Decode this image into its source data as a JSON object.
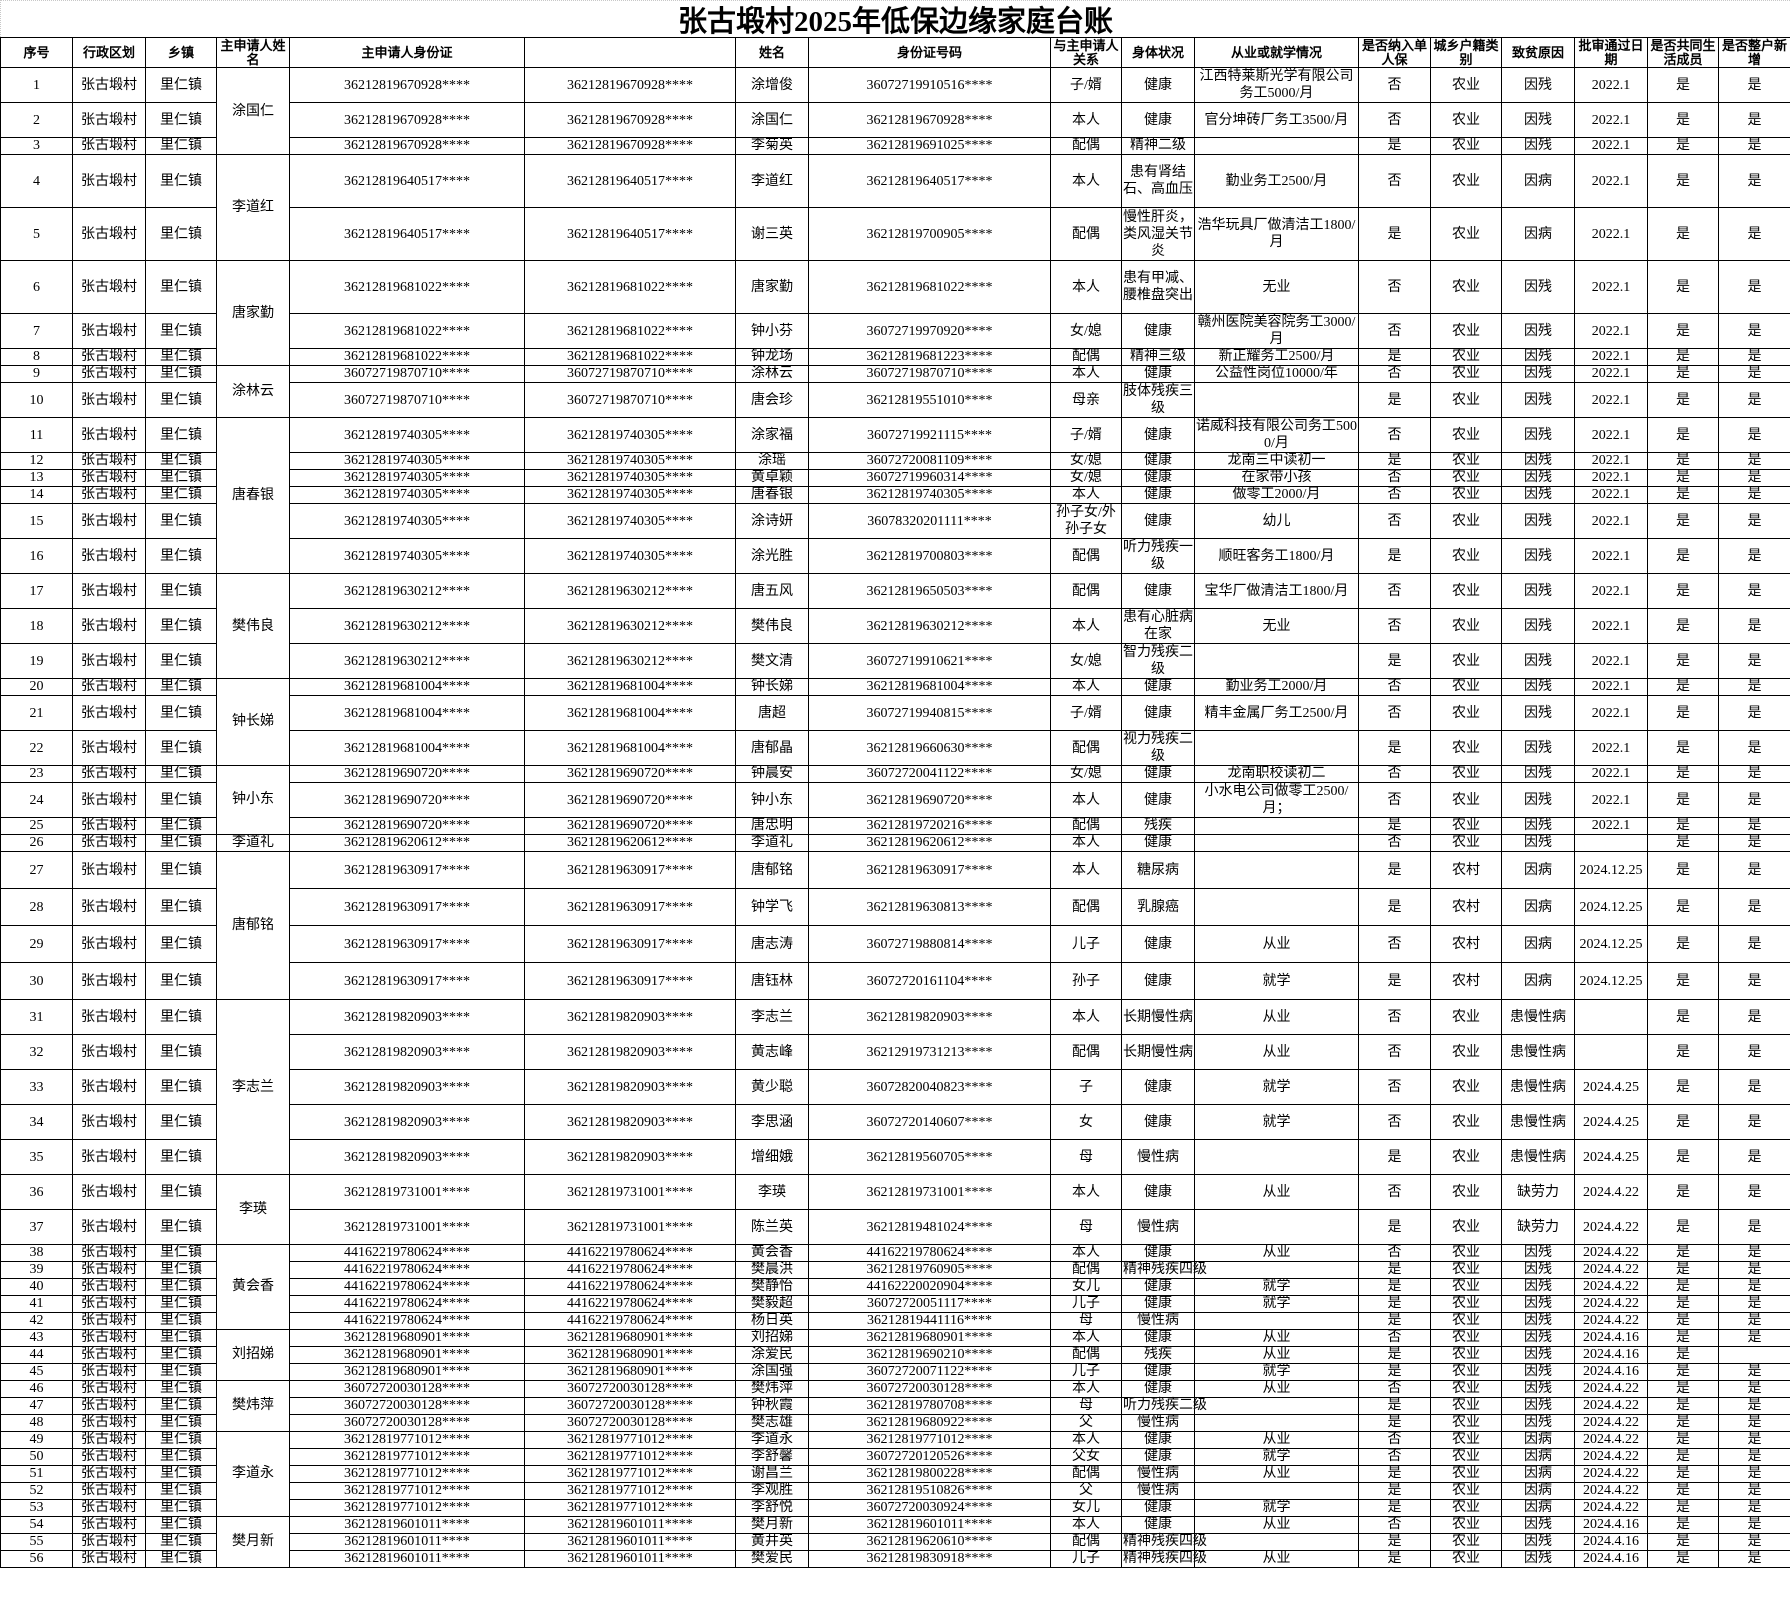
{
  "title": "张古塅村2025年低保边缘家庭台账",
  "headers": [
    "序号",
    "行政区划",
    "乡镇",
    "主申请人姓名",
    "主申请人身份证",
    "",
    "姓名",
    "身份证号码",
    "与主申请人关系",
    "身体状况",
    "从业或就学情况",
    "是否纳入单人保",
    "城乡户籍类别",
    "致贫原因",
    "批审通过日期",
    "是否共同生活成员",
    "是否整户新增"
  ],
  "applicants": [
    {
      "name": "涂国仁",
      "span": 3
    },
    {
      "name": "李道红",
      "span": 2
    },
    {
      "name": "唐家勤",
      "span": 3
    },
    {
      "name": "涂林云",
      "span": 2
    },
    {
      "name": "唐春银",
      "span": 6
    },
    {
      "name": "樊伟良",
      "span": 3
    },
    {
      "name": "钟长娣",
      "span": 3
    },
    {
      "name": "钟小东",
      "span": 3
    },
    {
      "name": "李道礼",
      "span": 1
    },
    {
      "name": "唐郁铭",
      "span": 4
    },
    {
      "name": "李志兰",
      "span": 5
    },
    {
      "name": "李瑛",
      "span": 2
    },
    {
      "name": "黄会香",
      "span": 5
    },
    {
      "name": "刘招娣",
      "span": 3
    },
    {
      "name": "樊炜萍",
      "span": 3
    },
    {
      "name": "李道永",
      "span": 5
    },
    {
      "name": "樊月新",
      "span": 3
    }
  ],
  "rows": [
    [
      "1",
      "张古塅村",
      "里仁镇",
      "36212819670928****",
      "36212819670928****",
      "涂增俊",
      "36072719910516****",
      "子/婿",
      "健康",
      "江西特莱斯光学有限公司务工5000/月",
      "否",
      "农业",
      "因残",
      "2022.1",
      "是",
      "是"
    ],
    [
      "2",
      "张古塅村",
      "里仁镇",
      "36212819670928****",
      "36212819670928****",
      "涂国仁",
      "36212819670928****",
      "本人",
      "健康",
      "官分坤砖厂务工3500/月",
      "否",
      "农业",
      "因残",
      "2022.1",
      "是",
      "是"
    ],
    [
      "3",
      "张古塅村",
      "里仁镇",
      "36212819670928****",
      "36212819670928****",
      "李菊英",
      "36212819691025****",
      "配偶",
      "精神二级",
      "",
      "是",
      "农业",
      "因残",
      "2022.1",
      "是",
      "是"
    ],
    [
      "4",
      "张古塅村",
      "里仁镇",
      "36212819640517****",
      "36212819640517****",
      "李道红",
      "36212819640517****",
      "本人",
      "患有肾结石、高血压",
      "勤业务工2500/月",
      "否",
      "农业",
      "因病",
      "2022.1",
      "是",
      "是"
    ],
    [
      "5",
      "张古塅村",
      "里仁镇",
      "36212819640517****",
      "36212819640517****",
      "谢三英",
      "36212819700905****",
      "配偶",
      "慢性肝炎，类风湿关节炎",
      "浩华玩具厂做清洁工1800/月",
      "是",
      "农业",
      "因病",
      "2022.1",
      "是",
      "是"
    ],
    [
      "6",
      "张古塅村",
      "里仁镇",
      "36212819681022****",
      "36212819681022****",
      "唐家勤",
      "36212819681022****",
      "本人",
      "患有甲减、腰椎盘突出",
      "无业",
      "否",
      "农业",
      "因残",
      "2022.1",
      "是",
      "是"
    ],
    [
      "7",
      "张古塅村",
      "里仁镇",
      "36212819681022****",
      "36212819681022****",
      "钟小芬",
      "36072719970920****",
      "女/媳",
      "健康",
      "赣州医院美容院务工3000/月",
      "否",
      "农业",
      "因残",
      "2022.1",
      "是",
      "是"
    ],
    [
      "8",
      "张古塅村",
      "里仁镇",
      "36212819681022****",
      "36212819681022****",
      "钟龙场",
      "36212819681223****",
      "配偶",
      "精神三级",
      "新正耀务工2500/月",
      "是",
      "农业",
      "因残",
      "2022.1",
      "是",
      "是"
    ],
    [
      "9",
      "张古塅村",
      "里仁镇",
      "36072719870710****",
      "36072719870710****",
      "涂林云",
      "36072719870710****",
      "本人",
      "健康",
      "公益性岗位10000/年",
      "否",
      "农业",
      "因残",
      "2022.1",
      "是",
      "是"
    ],
    [
      "10",
      "张古塅村",
      "里仁镇",
      "36072719870710****",
      "36072719870710****",
      "唐会珍",
      "36212819551010****",
      "母亲",
      "肢体残疾三级",
      "",
      "是",
      "农业",
      "因残",
      "2022.1",
      "是",
      "是"
    ],
    [
      "11",
      "张古塅村",
      "里仁镇",
      "36212819740305****",
      "36212819740305****",
      "涂家福",
      "36072719921115****",
      "子/婿",
      "健康",
      "诺威科技有限公司务工5000/月",
      "否",
      "农业",
      "因残",
      "2022.1",
      "是",
      "是"
    ],
    [
      "12",
      "张古塅村",
      "里仁镇",
      "36212819740305****",
      "36212819740305****",
      "涂瑶",
      "36072720081109****",
      "女/媳",
      "健康",
      "龙南三中读初一",
      "是",
      "农业",
      "因残",
      "2022.1",
      "是",
      "是"
    ],
    [
      "13",
      "张古塅村",
      "里仁镇",
      "36212819740305****",
      "36212819740305****",
      "黄卓颖",
      "36072719960314****",
      "女/媳",
      "健康",
      "在家带小孩",
      "否",
      "农业",
      "因残",
      "2022.1",
      "是",
      "是"
    ],
    [
      "14",
      "张古塅村",
      "里仁镇",
      "36212819740305****",
      "36212819740305****",
      "唐春银",
      "36212819740305****",
      "本人",
      "健康",
      "做零工2000/月",
      "否",
      "农业",
      "因残",
      "2022.1",
      "是",
      "是"
    ],
    [
      "15",
      "张古塅村",
      "里仁镇",
      "36212819740305****",
      "36212819740305****",
      "涂诗妍",
      "36078320201111****",
      "孙子女/外孙子女",
      "健康",
      "幼儿",
      "否",
      "农业",
      "因残",
      "2022.1",
      "是",
      "是"
    ],
    [
      "16",
      "张古塅村",
      "里仁镇",
      "36212819740305****",
      "36212819740305****",
      "涂光胜",
      "36212819700803****",
      "配偶",
      "听力残疾一级",
      "顺旺客务工1800/月",
      "是",
      "农业",
      "因残",
      "2022.1",
      "是",
      "是"
    ],
    [
      "17",
      "张古塅村",
      "里仁镇",
      "36212819630212****",
      "36212819630212****",
      "唐五风",
      "36212819650503****",
      "配偶",
      "健康",
      "宝华厂做清洁工1800/月",
      "否",
      "农业",
      "因残",
      "2022.1",
      "是",
      "是"
    ],
    [
      "18",
      "张古塅村",
      "里仁镇",
      "36212819630212****",
      "36212819630212****",
      "樊伟良",
      "36212819630212****",
      "本人",
      "患有心脏病在家",
      "无业",
      "否",
      "农业",
      "因残",
      "2022.1",
      "是",
      "是"
    ],
    [
      "19",
      "张古塅村",
      "里仁镇",
      "36212819630212****",
      "36212819630212****",
      "樊文清",
      "36072719910621****",
      "女/媳",
      "智力残疾二级",
      "",
      "是",
      "农业",
      "因残",
      "2022.1",
      "是",
      "是"
    ],
    [
      "20",
      "张古塅村",
      "里仁镇",
      "36212819681004****",
      "36212819681004****",
      "钟长娣",
      "36212819681004****",
      "本人",
      "健康",
      "勤业务工2000/月",
      "否",
      "农业",
      "因残",
      "2022.1",
      "是",
      "是"
    ],
    [
      "21",
      "张古塅村",
      "里仁镇",
      "36212819681004****",
      "36212819681004****",
      "唐超",
      "36072719940815****",
      "子/婿",
      "健康",
      "精丰金属厂务工2500/月",
      "否",
      "农业",
      "因残",
      "2022.1",
      "是",
      "是"
    ],
    [
      "22",
      "张古塅村",
      "里仁镇",
      "36212819681004****",
      "36212819681004****",
      "唐郁晶",
      "36212819660630****",
      "配偶",
      "视力残疾二级",
      "",
      "是",
      "农业",
      "因残",
      "2022.1",
      "是",
      "是"
    ],
    [
      "23",
      "张古塅村",
      "里仁镇",
      "36212819690720****",
      "36212819690720****",
      "钟晨安",
      "36072720041122****",
      "女/媳",
      "健康",
      "龙南职校读初二",
      "否",
      "农业",
      "因残",
      "2022.1",
      "是",
      "是"
    ],
    [
      "24",
      "张古塅村",
      "里仁镇",
      "36212819690720****",
      "36212819690720****",
      "钟小东",
      "36212819690720****",
      "本人",
      "健康",
      "小水电公司做零工2500/月；",
      "否",
      "农业",
      "因残",
      "2022.1",
      "是",
      "是"
    ],
    [
      "25",
      "张古塅村",
      "里仁镇",
      "36212819690720****",
      "36212819690720****",
      "唐忠明",
      "36212819720216****",
      "配偶",
      "残疾",
      "",
      "是",
      "农业",
      "因残",
      "2022.1",
      "是",
      "是"
    ],
    [
      "26",
      "张古塅村",
      "里仁镇",
      "36212819620612****",
      "36212819620612****",
      "李道礼",
      "36212819620612****",
      "本人",
      "健康",
      "",
      "否",
      "农业",
      "因残",
      "",
      "是",
      "是"
    ],
    [
      "27",
      "张古塅村",
      "里仁镇",
      "36212819630917****",
      "36212819630917****",
      "唐郁铭",
      "36212819630917****",
      "本人",
      "糖尿病",
      "",
      "是",
      "农村",
      "因病",
      "2024.12.25",
      "是",
      "是"
    ],
    [
      "28",
      "张古塅村",
      "里仁镇",
      "36212819630917****",
      "36212819630917****",
      "钟学飞",
      "36212819630813****",
      "配偶",
      "乳腺癌",
      "",
      "是",
      "农村",
      "因病",
      "2024.12.25",
      "是",
      "是"
    ],
    [
      "29",
      "张古塅村",
      "里仁镇",
      "36212819630917****",
      "36212819630917****",
      "唐志涛",
      "36072719880814****",
      "儿子",
      "健康",
      "从业",
      "否",
      "农村",
      "因病",
      "2024.12.25",
      "是",
      "是"
    ],
    [
      "30",
      "张古塅村",
      "里仁镇",
      "36212819630917****",
      "36212819630917****",
      "唐钰林",
      "36072720161104****",
      "孙子",
      "健康",
      "就学",
      "是",
      "农村",
      "因病",
      "2024.12.25",
      "是",
      "是"
    ],
    [
      "31",
      "张古塅村",
      "里仁镇",
      "36212819820903****",
      "36212819820903****",
      "李志兰",
      "36212819820903****",
      "本人",
      "长期慢性病",
      "从业",
      "否",
      "农业",
      "患慢性病",
      "",
      "是",
      "是"
    ],
    [
      "32",
      "张古塅村",
      "里仁镇",
      "36212819820903****",
      "36212819820903****",
      "黄志峰",
      "36212919731213****",
      "配偶",
      "长期慢性病",
      "从业",
      "否",
      "农业",
      "患慢性病",
      "",
      "是",
      "是"
    ],
    [
      "33",
      "张古塅村",
      "里仁镇",
      "36212819820903****",
      "36212819820903****",
      "黄少聪",
      "36072820040823****",
      "子",
      "健康",
      "就学",
      "否",
      "农业",
      "患慢性病",
      "2024.4.25",
      "是",
      "是"
    ],
    [
      "34",
      "张古塅村",
      "里仁镇",
      "36212819820903****",
      "36212819820903****",
      "李思涵",
      "36072720140607****",
      "女",
      "健康",
      "就学",
      "否",
      "农业",
      "患慢性病",
      "2024.4.25",
      "是",
      "是"
    ],
    [
      "35",
      "张古塅村",
      "里仁镇",
      "36212819820903****",
      "36212819820903****",
      "增细娥",
      "36212819560705****",
      "母",
      "慢性病",
      "",
      "是",
      "农业",
      "患慢性病",
      "2024.4.25",
      "是",
      "是"
    ],
    [
      "36",
      "张古塅村",
      "里仁镇",
      "36212819731001****",
      "36212819731001****",
      "李瑛",
      "36212819731001****",
      "本人",
      "健康",
      "从业",
      "否",
      "农业",
      "缺劳力",
      "2024.4.22",
      "是",
      "是"
    ],
    [
      "37",
      "张古塅村",
      "里仁镇",
      "36212819731001****",
      "36212819731001****",
      "陈兰英",
      "36212819481024****",
      "母",
      "慢性病",
      "",
      "是",
      "农业",
      "缺劳力",
      "2024.4.22",
      "是",
      "是"
    ],
    [
      "38",
      "张古塅村",
      "里仁镇",
      "44162219780624****",
      "44162219780624****",
      "黄会香",
      "44162219780624****",
      "本人",
      "健康",
      "从业",
      "否",
      "农业",
      "因残",
      "2024.4.22",
      "是",
      "是"
    ],
    [
      "39",
      "张古塅村",
      "里仁镇",
      "44162219780624****",
      "44162219780624****",
      "樊晨洪",
      "36212819760905****",
      "配偶",
      "精神残疾四级",
      "",
      "是",
      "农业",
      "因残",
      "2024.4.22",
      "是",
      "是"
    ],
    [
      "40",
      "张古塅村",
      "里仁镇",
      "44162219780624****",
      "44162219780624****",
      "樊静怡",
      "44162220020904****",
      "女儿",
      "健康",
      "就学",
      "是",
      "农业",
      "因残",
      "2024.4.22",
      "是",
      "是"
    ],
    [
      "41",
      "张古塅村",
      "里仁镇",
      "44162219780624****",
      "44162219780624****",
      "樊毅超",
      "36072720051117****",
      "儿子",
      "健康",
      "就学",
      "是",
      "农业",
      "因残",
      "2024.4.22",
      "是",
      "是"
    ],
    [
      "42",
      "张古塅村",
      "里仁镇",
      "44162219780624****",
      "44162219780624****",
      "杨日英",
      "36212819441116****",
      "母",
      "慢性病",
      "",
      "是",
      "农业",
      "因残",
      "2024.4.22",
      "是",
      "是"
    ],
    [
      "43",
      "张古塅村",
      "里仁镇",
      "36212819680901****",
      "36212819680901****",
      "刘招娣",
      "36212819680901****",
      "本人",
      "健康",
      "从业",
      "否",
      "农业",
      "因残",
      "2024.4.16",
      "是",
      "是"
    ],
    [
      "44",
      "张古塅村",
      "里仁镇",
      "36212819680901****",
      "36212819680901****",
      "涂爱民",
      "36212819690210****",
      "配偶",
      "残疾",
      "从业",
      "是",
      "农业",
      "因残",
      "2024.4.16",
      "是",
      ""
    ],
    [
      "45",
      "张古塅村",
      "里仁镇",
      "36212819680901****",
      "36212819680901****",
      "涂国强",
      "36072720071122****",
      "儿子",
      "健康",
      "就学",
      "是",
      "农业",
      "因残",
      "2024.4.16",
      "是",
      "是"
    ],
    [
      "46",
      "张古塅村",
      "里仁镇",
      "36072720030128****",
      "36072720030128****",
      "樊炜萍",
      "36072720030128****",
      "本人",
      "健康",
      "从业",
      "否",
      "农业",
      "因残",
      "2024.4.22",
      "是",
      "是"
    ],
    [
      "47",
      "张古塅村",
      "里仁镇",
      "36072720030128****",
      "36072720030128****",
      "钟秋霞",
      "36212819780708****",
      "母",
      "听力残疾二级",
      "",
      "是",
      "农业",
      "因残",
      "2024.4.22",
      "是",
      "是"
    ],
    [
      "48",
      "张古塅村",
      "里仁镇",
      "36072720030128****",
      "36072720030128****",
      "樊志雄",
      "36212819680922****",
      "父",
      "慢性病",
      "",
      "是",
      "农业",
      "因残",
      "2024.4.22",
      "是",
      "是"
    ],
    [
      "49",
      "张古塅村",
      "里仁镇",
      "36212819771012****",
      "36212819771012****",
      "李道永",
      "36212819771012****",
      "本人",
      "健康",
      "从业",
      "否",
      "农业",
      "因病",
      "2024.4.22",
      "是",
      "是"
    ],
    [
      "50",
      "张古塅村",
      "里仁镇",
      "36212819771012****",
      "36212819771012****",
      "李舒馨",
      "36072720120526****",
      "父女",
      "健康",
      "就学",
      "否",
      "农业",
      "因病",
      "2024.4.22",
      "是",
      "是"
    ],
    [
      "51",
      "张古塅村",
      "里仁镇",
      "36212819771012****",
      "36212819771012****",
      "谢昌兰",
      "36212819800228****",
      "配偶",
      "慢性病",
      "从业",
      "是",
      "农业",
      "因病",
      "2024.4.22",
      "是",
      "是"
    ],
    [
      "52",
      "张古塅村",
      "里仁镇",
      "36212819771012****",
      "36212819771012****",
      "李观胜",
      "36212819510826****",
      "父",
      "慢性病",
      "",
      "是",
      "农业",
      "因病",
      "2024.4.22",
      "是",
      "是"
    ],
    [
      "53",
      "张古塅村",
      "里仁镇",
      "36212819771012****",
      "36212819771012****",
      "李舒悦",
      "36072720030924****",
      "女儿",
      "健康",
      "就学",
      "是",
      "农业",
      "因病",
      "2024.4.22",
      "是",
      "是"
    ],
    [
      "54",
      "张古塅村",
      "里仁镇",
      "36212819601011****",
      "36212819601011****",
      "樊月新",
      "36212819601011****",
      "本人",
      "健康",
      "从业",
      "否",
      "农业",
      "因残",
      "2024.4.16",
      "是",
      "是"
    ],
    [
      "55",
      "张古塅村",
      "里仁镇",
      "36212819601011****",
      "36212819601011****",
      "黄井英",
      "36212819620610****",
      "配偶",
      "精神残疾四级",
      "",
      "是",
      "农业",
      "因残",
      "2024.4.16",
      "是",
      "是"
    ],
    [
      "56",
      "张古塅村",
      "里仁镇",
      "36212819601011****",
      "36212819601011****",
      "樊爱民",
      "36212819830918****",
      "儿子",
      "精神残疾四级",
      "从业",
      "是",
      "农业",
      "因残",
      "2024.4.16",
      "是",
      "是"
    ]
  ]
}
